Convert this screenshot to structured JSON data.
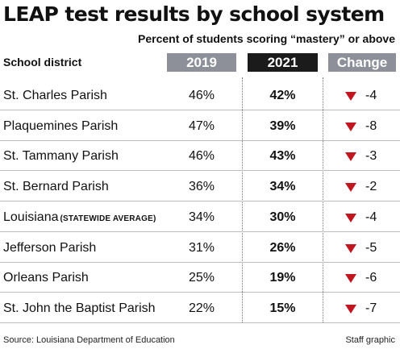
{
  "chart_data": {
    "type": "table",
    "title": "LEAP test results by school system",
    "subtitle": "Percent of students scoring “mastery” or above",
    "columns": [
      "School district",
      "2019",
      "2021",
      "Change"
    ],
    "rows": [
      {
        "district": "St. Charles Parish",
        "note": "",
        "y2019": "46%",
        "y2021": "42%",
        "change": "-4"
      },
      {
        "district": "Plaquemines Parish",
        "note": "",
        "y2019": "47%",
        "y2021": "39%",
        "change": "-8"
      },
      {
        "district": "St. Tammany Parish",
        "note": "",
        "y2019": "46%",
        "y2021": "43%",
        "change": "-3"
      },
      {
        "district": "St. Bernard Parish",
        "note": "",
        "y2019": "36%",
        "y2021": "34%",
        "change": "-2"
      },
      {
        "district": "Louisiana",
        "note": "(STATEWIDE AVERAGE)",
        "y2019": "34%",
        "y2021": "30%",
        "change": "-4"
      },
      {
        "district": "Jefferson Parish",
        "note": "",
        "y2019": "31%",
        "y2021": "26%",
        "change": "-5"
      },
      {
        "district": "Orleans Parish",
        "note": "",
        "y2019": "25%",
        "y2021": "19%",
        "change": "-6"
      },
      {
        "district": "St. John the Baptist Parish",
        "note": "",
        "y2019": "22%",
        "y2021": "15%",
        "change": "-7"
      }
    ],
    "source": "Source: Louisiana Department of Education",
    "credit": "Staff graphic",
    "colors": {
      "header_gray": "#8e9099",
      "header_black": "#1b1b1b",
      "down_arrow": "#c0161f"
    }
  }
}
